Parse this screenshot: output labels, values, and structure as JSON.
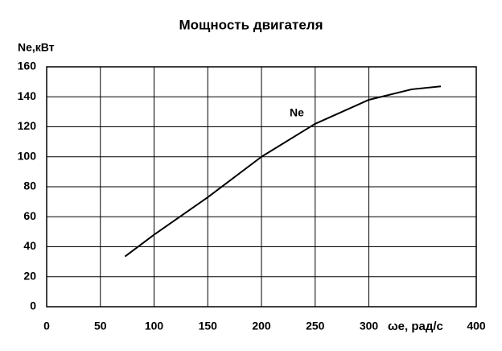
{
  "chart_data": {
    "type": "line",
    "title": "Мощность двигателя",
    "x_label": "ωe, рад/с",
    "y_label": "Ne,кВт",
    "annotation": "Ne",
    "x": [
      73,
      100,
      150,
      200,
      250,
      300,
      340,
      367
    ],
    "series": [
      {
        "name": "Ne",
        "color": "#000000",
        "values": [
          33.5,
          48,
          73,
          100,
          122,
          138,
          145,
          147
        ]
      }
    ],
    "xlim": [
      0,
      400
    ],
    "xticks": [
      0,
      50,
      100,
      150,
      200,
      250,
      300,
      400
    ],
    "ylim": [
      0,
      160
    ],
    "yticks": [
      0,
      20,
      40,
      60,
      80,
      100,
      120,
      140,
      160
    ],
    "grid": true,
    "legend": false
  }
}
